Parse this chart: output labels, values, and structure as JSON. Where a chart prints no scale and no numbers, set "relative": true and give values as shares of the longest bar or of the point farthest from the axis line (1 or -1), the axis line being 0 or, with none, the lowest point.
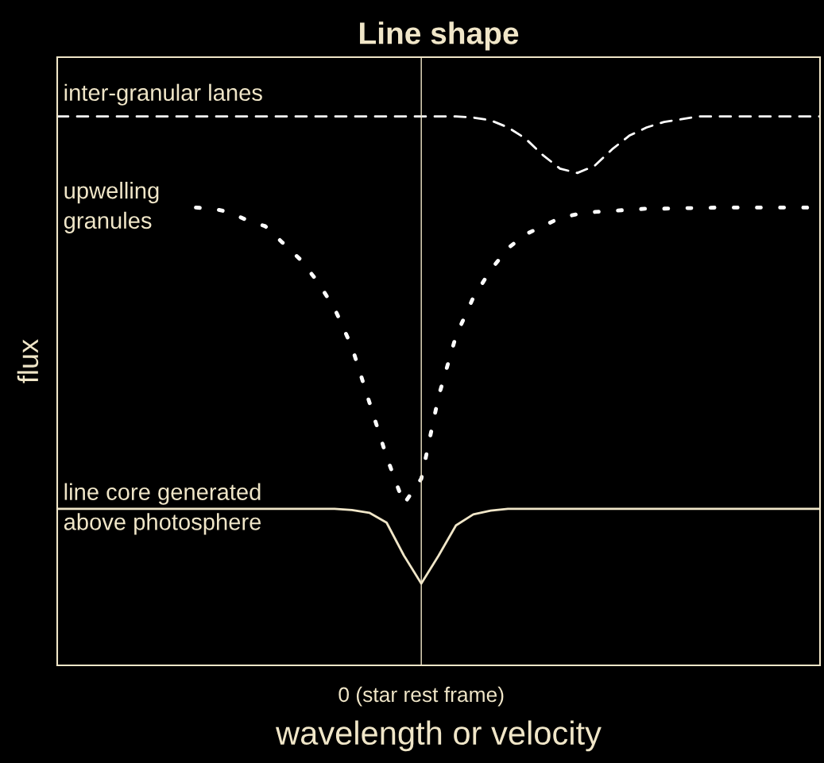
{
  "chart_data": {
    "type": "line",
    "title": "Line shape",
    "xlabel": "wavelength or velocity",
    "ylabel": "flux",
    "relative": true,
    "categories": [
      null,
      null,
      null,
      null,
      null,
      null,
      null,
      null,
      null,
      null,
      null,
      null,
      null,
      null,
      null,
      null,
      null,
      null,
      null,
      null,
      null,
      null,
      null,
      null,
      null,
      null,
      null,
      null,
      null,
      null,
      null,
      null,
      null,
      null,
      null,
      null,
      null,
      null,
      null,
      null,
      null,
      null,
      null,
      null,
      null
    ],
    "legend": false,
    "marker": "none",
    "annotations": [
      "0 (star rest frame)"
    ],
    "series": [
      {
        "name": "inter-granular lanes",
        "color": "#ffffff",
        "line_style": "dashed",
        "values": [
          1.0,
          1.0,
          1.0,
          1.0,
          1.0,
          1.0,
          1.0,
          1.0,
          1.0,
          1.0,
          1.0,
          1.0,
          1.0,
          1.0,
          1.0,
          1.0,
          1.0,
          1.0,
          1.0,
          1.0,
          1.0,
          1.0,
          1.0,
          1.0,
          0.998,
          0.993,
          0.98,
          0.96,
          0.93,
          0.905,
          0.897,
          0.91,
          0.94,
          0.965,
          0.98,
          0.99,
          0.995,
          1.0,
          1.0,
          1.0,
          1.0,
          1.0,
          1.0,
          1.0,
          1.0
        ]
      },
      {
        "name": "upwelling\ngranules",
        "color": "#ffffff",
        "line_style": "dotted",
        "values": [
          null,
          null,
          null,
          null,
          null,
          null,
          null,
          null,
          0.834,
          0.832,
          0.825,
          0.81,
          0.8,
          0.77,
          0.74,
          0.7,
          0.65,
          0.58,
          0.48,
          0.38,
          0.294,
          0.34,
          0.49,
          0.6,
          0.67,
          0.72,
          0.76,
          0.785,
          0.8,
          0.815,
          0.822,
          0.826,
          0.828,
          0.83,
          0.832,
          0.832,
          0.833,
          0.833,
          0.834,
          0.834,
          0.834,
          0.834,
          0.834,
          0.834,
          0.834
        ]
      },
      {
        "name": "line core generated\nabove photosphere",
        "color": "#f0e6c8",
        "line_style": "solid",
        "values": [
          0.285,
          0.285,
          0.285,
          0.285,
          0.285,
          0.285,
          0.285,
          0.285,
          0.285,
          0.285,
          0.285,
          0.285,
          0.285,
          0.285,
          0.285,
          0.285,
          0.285,
          0.283,
          0.278,
          0.26,
          0.2,
          0.149,
          0.2,
          0.255,
          0.275,
          0.282,
          0.285,
          0.285,
          0.285,
          0.285,
          0.285,
          0.285,
          0.285,
          0.285,
          0.285,
          0.285,
          0.285,
          0.285,
          0.285,
          0.285,
          0.285,
          0.285,
          0.285,
          0.285,
          0.285
        ]
      }
    ]
  }
}
